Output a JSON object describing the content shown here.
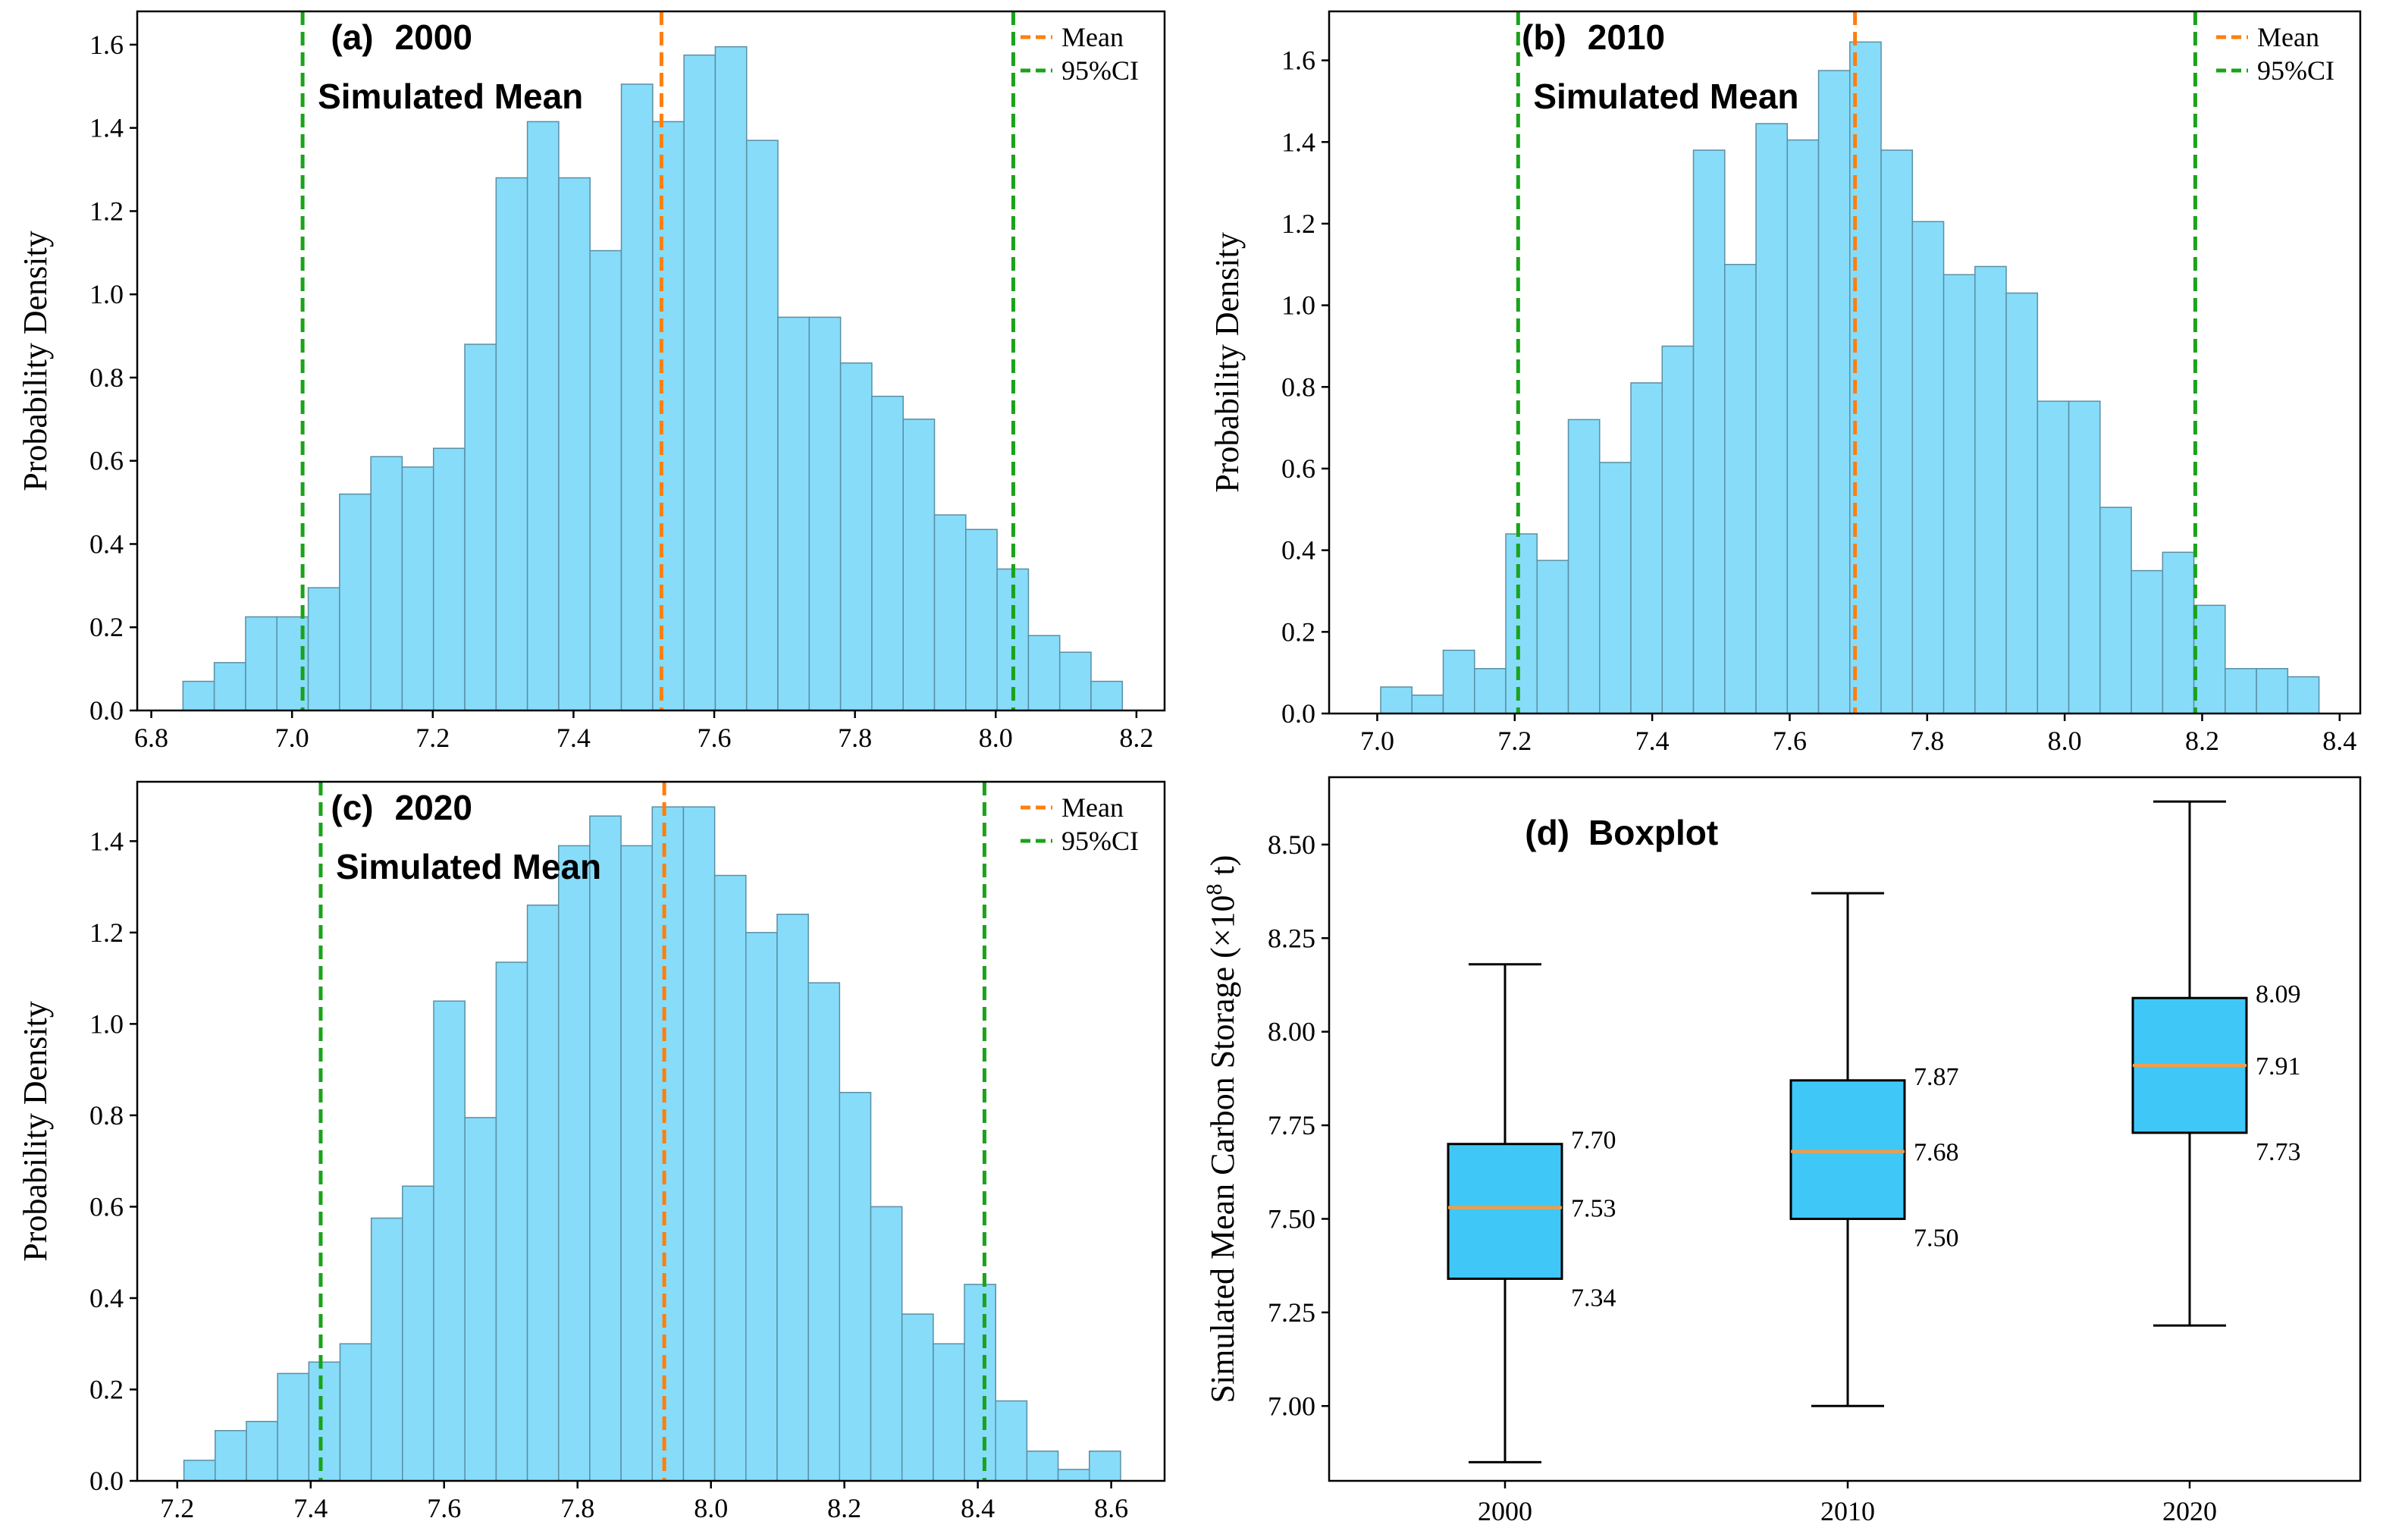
{
  "colors": {
    "bar": "#87dcfa",
    "bar_edge": "#5a8fa3",
    "mean": "#ff7f0e",
    "ci": "#1aa31a",
    "box": "#3fc8f7",
    "median": "#ff9a3c"
  },
  "chart_data": [
    {
      "type": "bar",
      "panel_label": "(a)",
      "panel_year": "2000",
      "annotation": "Simulated Mean",
      "ylabel": "Probability Density",
      "xlim": [
        6.78,
        8.24
      ],
      "ylim": [
        0,
        1.68
      ],
      "xticks": [
        "6.8",
        "7.0",
        "7.2",
        "7.4",
        "7.6",
        "7.8",
        "8.0",
        "8.2"
      ],
      "yticks": [
        "0.0",
        "0.2",
        "0.4",
        "0.6",
        "0.8",
        "1.0",
        "1.2",
        "1.4",
        "1.6"
      ],
      "bin_start": 6.845,
      "bin_width": 0.0445,
      "values": [
        0.07,
        0.115,
        0.225,
        0.225,
        0.295,
        0.52,
        0.61,
        0.585,
        0.63,
        0.88,
        1.28,
        1.415,
        1.28,
        1.105,
        1.505,
        1.415,
        1.575,
        1.595,
        1.37,
        0.945,
        0.945,
        0.835,
        0.755,
        0.7,
        0.47,
        0.435,
        0.34,
        0.18,
        0.14,
        0.07
      ],
      "mean": 7.525,
      "ci": [
        7.015,
        8.025
      ],
      "legend": [
        "Mean",
        "95%CI"
      ]
    },
    {
      "type": "bar",
      "panel_label": "(b)",
      "panel_year": "2010",
      "annotation": "Simulated Mean",
      "ylabel": "Probability Density",
      "xlim": [
        6.93,
        8.43
      ],
      "ylim": [
        0,
        1.72
      ],
      "xticks": [
        "7.0",
        "7.2",
        "7.4",
        "7.6",
        "7.8",
        "8.0",
        "8.2",
        "8.4"
      ],
      "yticks": [
        "0.0",
        "0.2",
        "0.4",
        "0.6",
        "0.8",
        "1.0",
        "1.2",
        "1.4",
        "1.6"
      ],
      "bin_start": 7.005,
      "bin_width": 0.0455,
      "values": [
        0.065,
        0.045,
        0.155,
        0.11,
        0.44,
        0.375,
        0.72,
        0.615,
        0.81,
        0.9,
        1.38,
        1.1,
        1.445,
        1.405,
        1.575,
        1.645,
        1.38,
        1.205,
        1.075,
        1.095,
        1.03,
        0.765,
        0.765,
        0.505,
        0.35,
        0.395,
        0.265,
        0.11,
        0.11,
        0.09
      ],
      "mean": 7.695,
      "ci": [
        7.205,
        8.19
      ],
      "legend": [
        "Mean",
        "95%CI"
      ]
    },
    {
      "type": "bar",
      "panel_label": "(c)",
      "panel_year": "2020",
      "annotation": "Simulated Mean",
      "ylabel": "Probability Density",
      "xlim": [
        7.14,
        8.68
      ],
      "ylim": [
        0,
        1.53
      ],
      "xticks": [
        "7.2",
        "7.4",
        "7.6",
        "7.8",
        "8.0",
        "8.2",
        "8.4",
        "8.6"
      ],
      "yticks": [
        "0.0",
        "0.2",
        "0.4",
        "0.6",
        "0.8",
        "1.0",
        "1.2",
        "1.4"
      ],
      "bin_start": 7.21,
      "bin_width": 0.0468,
      "values": [
        0.045,
        0.11,
        0.13,
        0.235,
        0.26,
        0.3,
        0.575,
        0.645,
        1.05,
        0.795,
        1.135,
        1.26,
        1.39,
        1.455,
        1.39,
        1.475,
        1.475,
        1.325,
        1.2,
        1.24,
        1.09,
        0.85,
        0.6,
        0.365,
        0.3,
        0.43,
        0.175,
        0.065,
        0.025,
        0.065
      ],
      "mean": 7.93,
      "ci": [
        7.415,
        8.41
      ],
      "legend": [
        "Mean",
        "95%CI"
      ]
    },
    {
      "type": "boxplot",
      "panel_label": "(d)",
      "panel_title": "Boxplot",
      "ylabel": "Simulated Mean Carbon Storage (×10",
      "ylabel_exp": "8",
      "ylabel_unit": " t)",
      "ylim": [
        6.8,
        8.68
      ],
      "yticks": [
        "7.00",
        "7.25",
        "7.50",
        "7.75",
        "8.00",
        "8.25",
        "8.50"
      ],
      "categories": [
        "2000",
        "2010",
        "2020"
      ],
      "boxes": [
        {
          "year": "2000",
          "min": 6.85,
          "q1": 7.34,
          "median": 7.53,
          "q3": 7.7,
          "max": 8.18,
          "labels": [
            "7.70",
            "7.53",
            "7.34"
          ]
        },
        {
          "year": "2010",
          "min": 7.0,
          "q1": 7.5,
          "median": 7.68,
          "q3": 7.87,
          "max": 8.37,
          "labels": [
            "7.87",
            "7.68",
            "7.50"
          ]
        },
        {
          "year": "2020",
          "min": 7.215,
          "q1": 7.73,
          "median": 7.91,
          "q3": 8.09,
          "max": 8.615,
          "labels": [
            "8.09",
            "7.91",
            "7.73"
          ]
        }
      ]
    }
  ]
}
